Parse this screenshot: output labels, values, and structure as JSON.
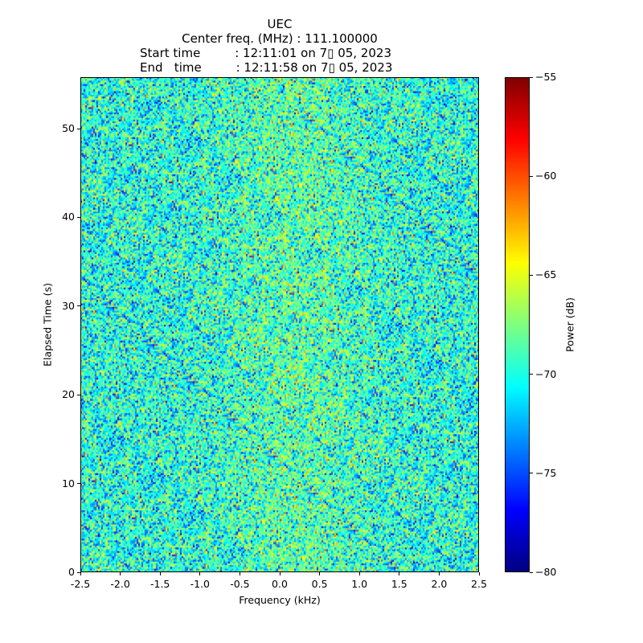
{
  "chart_data": {
    "type": "heatmap",
    "title_lines": [
      "UEC",
      "Center freq. (MHz) : 111.100000",
      "Start time         : 12:11:01 on 7▯ 05, 2023",
      "End   time         : 12:11:58 on 7▯ 05, 2023"
    ],
    "xlabel": "Frequency (kHz)",
    "ylabel": "Elapsed Time (s)",
    "xlim": [
      -2.5,
      2.5
    ],
    "ylim": [
      0,
      55.8
    ],
    "xticks": [
      "-2.5",
      "-2.0",
      "-1.5",
      "-1.0",
      "-0.5",
      "0.0",
      "0.5",
      "1.0",
      "1.5",
      "2.0",
      "2.5"
    ],
    "yticks": [
      "0",
      "10",
      "20",
      "30",
      "40",
      "50"
    ],
    "colorbar": {
      "label": "Power (dB)",
      "range": [
        -80,
        -55
      ],
      "ticks": [
        "−80",
        "−75",
        "−70",
        "−65",
        "−60",
        "−55"
      ],
      "colormap": "jet"
    },
    "values_summary": {
      "mean_db": -70,
      "std_db": 3,
      "note_values": "noise-like power spectrogram"
    }
  }
}
